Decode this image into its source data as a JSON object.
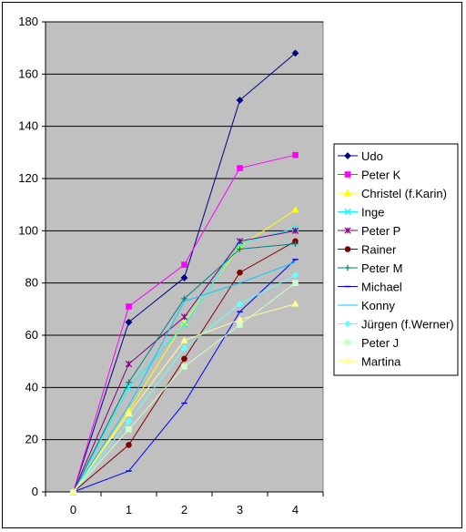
{
  "chart_data": {
    "type": "line",
    "x": [
      0,
      1,
      2,
      3,
      4
    ],
    "ylim": [
      0,
      180
    ],
    "yticks": [
      0,
      20,
      40,
      60,
      80,
      100,
      120,
      140,
      160,
      180
    ],
    "xticks": [
      0,
      1,
      2,
      3,
      4
    ],
    "grid": true,
    "plot_background": "#c0c0c0",
    "legend_position": "right",
    "series": [
      {
        "name": "Udo",
        "color": "#000080",
        "marker": "diamond",
        "values": [
          0,
          65,
          82,
          150,
          168
        ]
      },
      {
        "name": "Peter K",
        "color": "#ff00ff",
        "marker": "square",
        "values": [
          0,
          71,
          87,
          124,
          129
        ]
      },
      {
        "name": "Christel (f.Karin)",
        "color": "#ffff00",
        "marker": "triangle",
        "values": [
          0,
          31,
          65,
          94,
          108
        ]
      },
      {
        "name": "Inge",
        "color": "#00ffff",
        "marker": "x",
        "values": [
          0,
          40,
          64,
          95,
          101
        ]
      },
      {
        "name": "Peter P",
        "color": "#800080",
        "marker": "star",
        "values": [
          0,
          49,
          67,
          96,
          100
        ]
      },
      {
        "name": "Rainer",
        "color": "#800000",
        "marker": "circle",
        "values": [
          0,
          18,
          51,
          84,
          96
        ]
      },
      {
        "name": "Peter M",
        "color": "#008080",
        "marker": "plus",
        "values": [
          0,
          42,
          74,
          93,
          95
        ]
      },
      {
        "name": "Michael",
        "color": "#0000ff",
        "marker": "dash",
        "values": [
          0,
          8,
          34,
          69,
          89
        ]
      },
      {
        "name": "Konny",
        "color": "#00ccff",
        "marker": "none",
        "values": [
          0,
          33,
          73,
          80,
          88
        ]
      },
      {
        "name": "Jürgen (f.Werner)",
        "color": "#66ffff",
        "marker": "diamond",
        "values": [
          0,
          27,
          55,
          72,
          83
        ]
      },
      {
        "name": "Peter J",
        "color": "#ccffcc",
        "marker": "square",
        "values": [
          0,
          24,
          48,
          64,
          80
        ]
      },
      {
        "name": "Martina",
        "color": "#ffff99",
        "marker": "triangle",
        "values": [
          0,
          30,
          58,
          66,
          72
        ]
      }
    ]
  }
}
